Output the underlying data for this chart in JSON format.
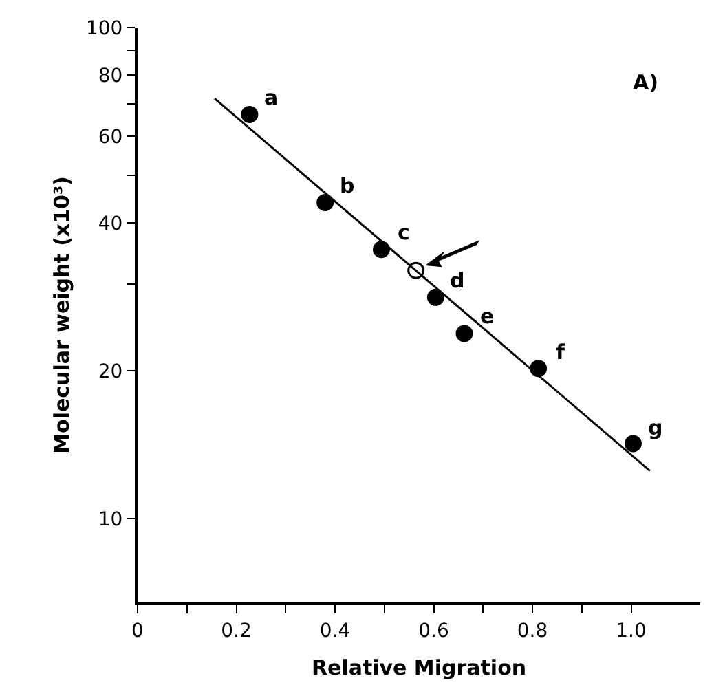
{
  "chart_data": {
    "type": "scatter",
    "xlabel": "Relative Migration",
    "ylabel": "Molecular weight (x10³)",
    "log": "y",
    "xlim": [
      0,
      1.14
    ],
    "ylim": [
      6.74,
      100
    ],
    "xticks": [
      0,
      {
        "value": 0.1,
        "label": null
      },
      0.2,
      {
        "value": 0.3,
        "label": null
      },
      0.4,
      {
        "value": 0.5,
        "label": null
      },
      0.6,
      {
        "value": 0.7,
        "label": null
      },
      0.8,
      {
        "value": 0.9,
        "label": null
      },
      {
        "value": 1,
        "label": "1.0"
      }
    ],
    "yticks": [
      10,
      20,
      {
        "value": 30,
        "label": null
      },
      40,
      {
        "value": 50,
        "label": null
      },
      60,
      {
        "value": 70,
        "label": null
      },
      80,
      {
        "value": 90,
        "label": null
      },
      100
    ],
    "series": [
      {
        "marker": "circle",
        "color": "#000000",
        "x": [
          0.227,
          0.38,
          0.494,
          0.604,
          0.662,
          0.812,
          1.004
        ],
        "values": [
          66.5,
          44.0,
          35.3,
          28.2,
          23.8,
          20.2,
          14.2
        ]
      },
      {
        "marker": "circle",
        "color": "#ffffff",
        "x": [
          0.564
        ],
        "values": [
          32.0
        ]
      },
      {
        "type": "line",
        "marker": "none",
        "line_style": "solid",
        "color": "#000000",
        "x": [
          0.156,
          1.038
        ],
        "values": [
          71.7,
          12.5
        ]
      }
    ],
    "annotations": [
      {
        "text": "a",
        "x": 0.227,
        "y": 66.5
      },
      {
        "text": "b",
        "x": 0.38,
        "y": 44.0
      },
      {
        "text": "c",
        "x": 0.494,
        "y": 35.3
      },
      {
        "text": "d",
        "x": 0.604,
        "y": 28.2
      },
      {
        "text": "e",
        "x": 0.662,
        "y": 23.8
      },
      {
        "text": "f",
        "x": 0.812,
        "y": 20.2
      },
      {
        "text": "g",
        "x": 1.004,
        "y": 14.2
      },
      "A)"
    ]
  }
}
